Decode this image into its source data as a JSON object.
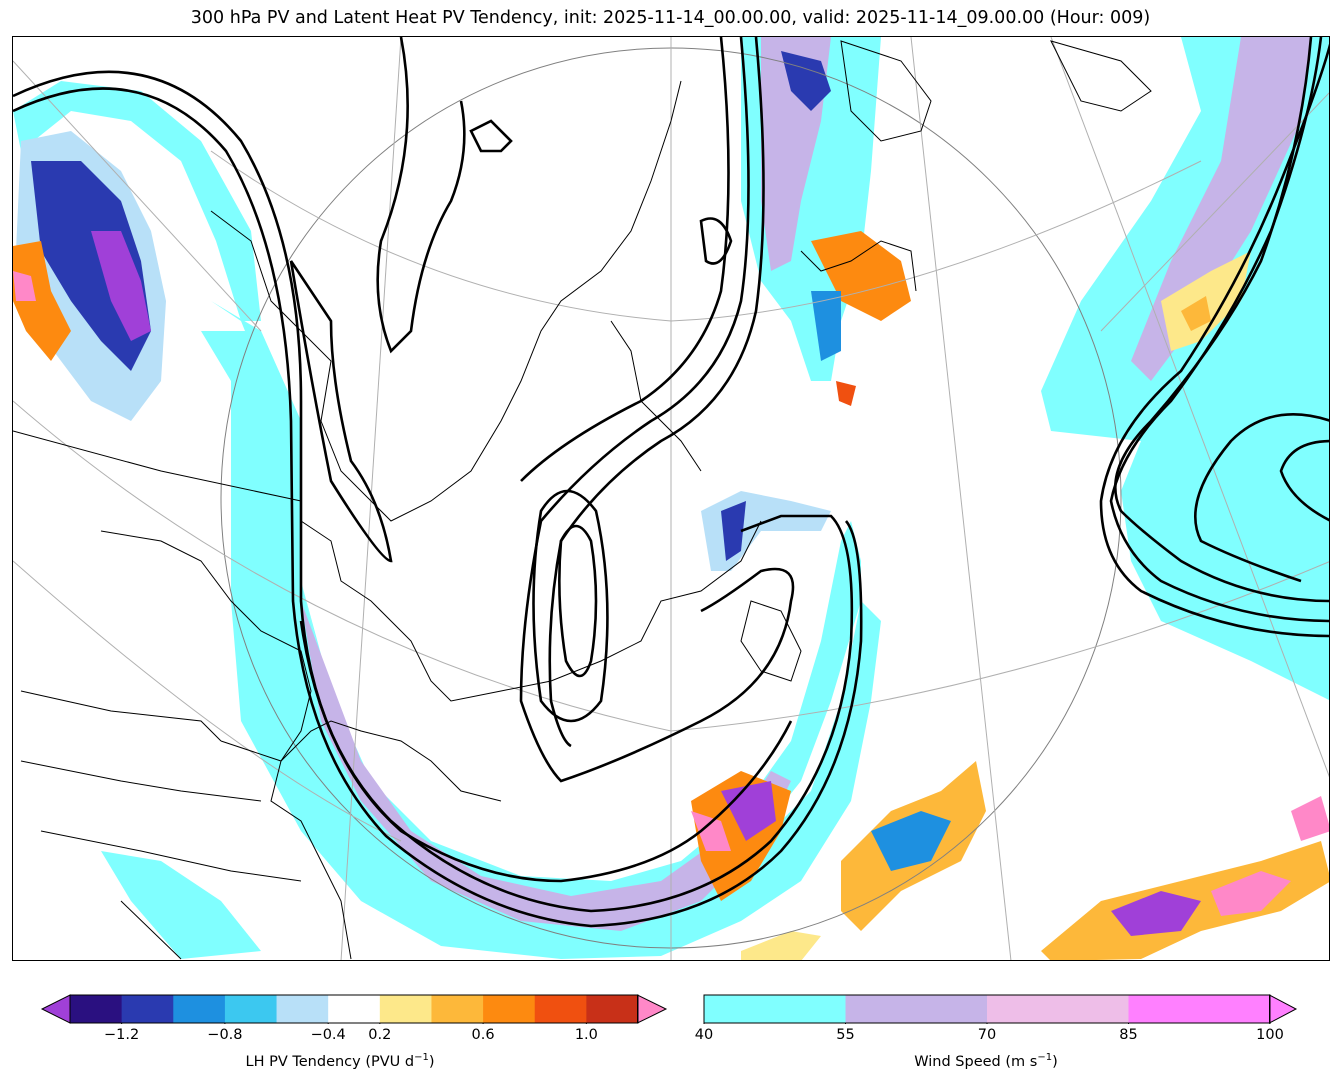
{
  "title": "300 hPa PV and Latent Heat PV Tendency, init: 2025-11-14_00.00.00, valid: 2025-11-14_09.00.00 (Hour: 009)",
  "colorbars": {
    "pv_tendency": {
      "label_main": "LH PV Tendency (PVU d",
      "label_exp": "−1",
      "label_close": ")",
      "tick_labels": [
        "−1.2",
        "−0.8",
        "−0.4",
        "0.2",
        "0.6",
        "1.0"
      ],
      "colors": [
        "#2a1080",
        "#2a3ab0",
        "#1e90e0",
        "#3cc8f0",
        "#b8e0f8",
        "#ffffff",
        "#fde88a",
        "#fdb83a",
        "#fd8a10",
        "#f05010",
        "#c83018"
      ],
      "extend_low_color": "#a040d8",
      "extend_high_color": "#ff88c8"
    },
    "wind_speed": {
      "label_main": "Wind Speed (m s",
      "label_exp": "−1",
      "label_close": ")",
      "tick_labels": [
        "40",
        "55",
        "70",
        "85",
        "100"
      ],
      "colors": [
        "#80ffff",
        "#c6b4e8",
        "#eebee8",
        "#ff80ff"
      ],
      "extend_high_color": "#ff80ff"
    }
  }
}
